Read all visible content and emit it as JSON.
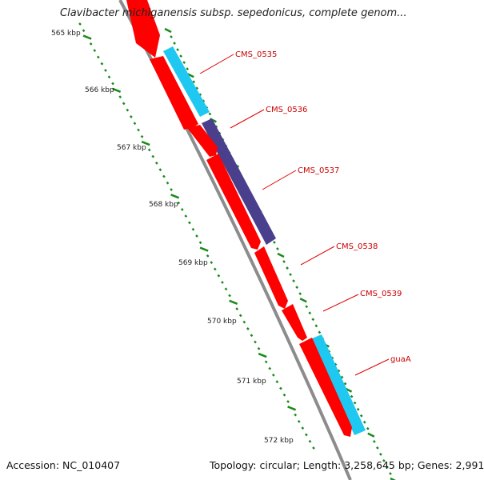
{
  "title": "Clavibacter michiganensis subsp. sepedonicus, complete genom...",
  "footer": {
    "accession": "Accession: NC_010407",
    "summary": "Topology: circular; Length: 3,258,645 bp; Genes: 2,991"
  },
  "colors": {
    "backbone": "#8c8c8c",
    "forward_cds": "#ff0000",
    "reverse_cds": "#1ec8f0",
    "other_cds": "#4a3f8c",
    "tick": "#1a8a1a",
    "label_line": "#e00000",
    "label_text": "#cc0000"
  },
  "scale_ticks": [
    "565 kbp",
    "566 kbp",
    "567 kbp",
    "568 kbp",
    "569 kbp",
    "570 kbp",
    "571 kbp",
    "572 kbp"
  ],
  "genes": [
    {
      "label": "CMS_0535"
    },
    {
      "label": "CMS_0536"
    },
    {
      "label": "CMS_0537"
    },
    {
      "label": "CMS_0538"
    },
    {
      "label": "CMS_0539"
    },
    {
      "label": "guaA"
    }
  ]
}
